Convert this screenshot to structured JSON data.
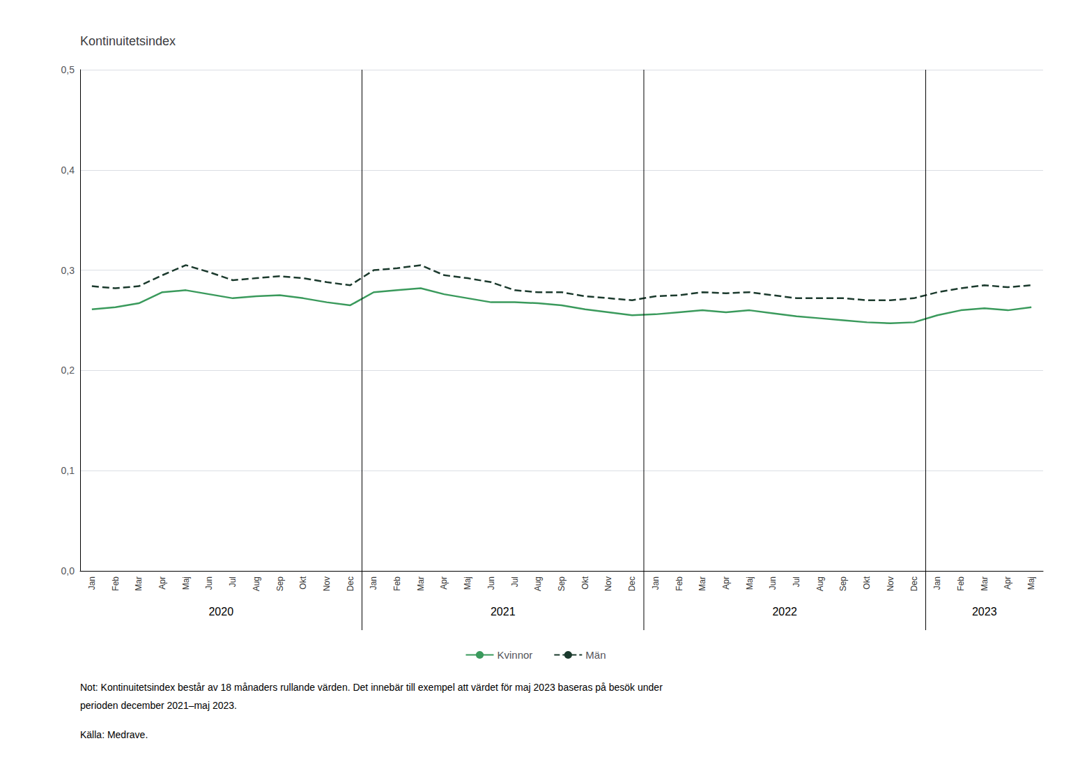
{
  "chart_data": {
    "type": "line",
    "title": "Kontinuitetsindex",
    "categories": [
      "Jan",
      "Feb",
      "Mar",
      "Apr",
      "Maj",
      "Jun",
      "Jul",
      "Aug",
      "Sep",
      "Okt",
      "Nov",
      "Dec",
      "Jan",
      "Feb",
      "Mar",
      "Apr",
      "Maj",
      "Jun",
      "Jul",
      "Aug",
      "Sep",
      "Okt",
      "Nov",
      "Dec",
      "Jan",
      "Feb",
      "Mar",
      "Apr",
      "Maj",
      "Jun",
      "Jul",
      "Aug",
      "Sep",
      "Okt",
      "Nov",
      "Dec",
      "Jan",
      "Feb",
      "Mar",
      "Apr",
      "Maj"
    ],
    "year_groups": [
      {
        "label": "2020",
        "start": 0,
        "end": 11
      },
      {
        "label": "2021",
        "start": 12,
        "end": 23
      },
      {
        "label": "2022",
        "start": 24,
        "end": 35
      },
      {
        "label": "2023",
        "start": 36,
        "end": 40
      }
    ],
    "series": [
      {
        "name": "Kvinnor",
        "color": "#3a9a5c",
        "line_style": "solid",
        "values": [
          0.261,
          0.263,
          0.267,
          0.278,
          0.28,
          0.276,
          0.272,
          0.274,
          0.275,
          0.272,
          0.268,
          0.265,
          0.278,
          0.28,
          0.282,
          0.276,
          0.272,
          0.268,
          0.268,
          0.267,
          0.265,
          0.261,
          0.258,
          0.255,
          0.256,
          0.258,
          0.26,
          0.258,
          0.26,
          0.257,
          0.254,
          0.252,
          0.25,
          0.248,
          0.247,
          0.248,
          0.255,
          0.26,
          0.262,
          0.26,
          0.263
        ]
      },
      {
        "name": "Män",
        "color": "#1b3a2d",
        "line_style": "dashed",
        "values": [
          0.284,
          0.282,
          0.284,
          0.295,
          0.305,
          0.298,
          0.29,
          0.292,
          0.294,
          0.292,
          0.288,
          0.285,
          0.3,
          0.302,
          0.305,
          0.295,
          0.292,
          0.288,
          0.28,
          0.278,
          0.278,
          0.274,
          0.272,
          0.27,
          0.274,
          0.275,
          0.278,
          0.277,
          0.278,
          0.275,
          0.272,
          0.272,
          0.272,
          0.27,
          0.27,
          0.272,
          0.278,
          0.282,
          0.285,
          0.283,
          0.285
        ]
      }
    ],
    "ylim": [
      0.0,
      0.5
    ],
    "yticks": [
      {
        "value": 0.0,
        "label": "0,0"
      },
      {
        "value": 0.1,
        "label": "0,1"
      },
      {
        "value": 0.2,
        "label": "0,2"
      },
      {
        "value": 0.3,
        "label": "0,3"
      },
      {
        "value": 0.4,
        "label": "0,4"
      },
      {
        "value": 0.5,
        "label": "0,5"
      }
    ],
    "grid": true,
    "legend": "bottom",
    "notes": [
      "Not: Kontinuitetsindex består av 18 månaders rullande värden. Det innebär till exempel att värdet för maj 2023 baseras på besök under",
      "perioden december 2021–maj 2023."
    ],
    "source": "Källa: Medrave."
  }
}
